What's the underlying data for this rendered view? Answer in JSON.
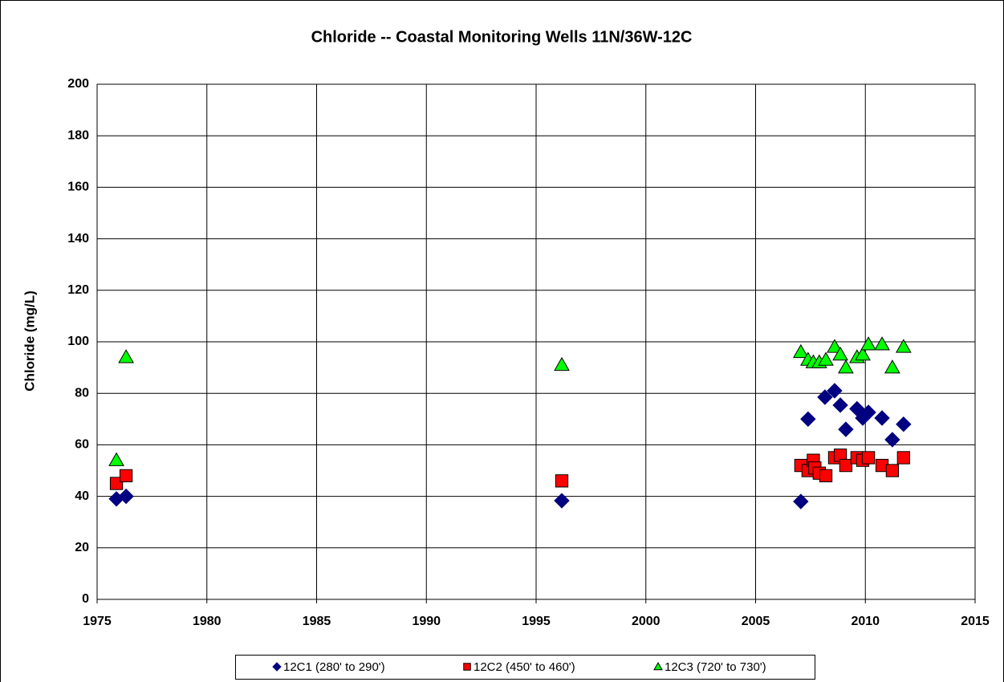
{
  "chart_data": {
    "type": "scatter",
    "title": "Chloride -- Coastal Monitoring Wells 11N/36W-12C",
    "y_label": "Chloride (mg/L)",
    "xlim": [
      1975,
      2015
    ],
    "xticks": [
      1975,
      1980,
      1985,
      1990,
      1995,
      2000,
      2005,
      2010,
      2015
    ],
    "ylim": [
      0,
      200
    ],
    "yticks": [
      0,
      20,
      40,
      60,
      80,
      100,
      120,
      140,
      160,
      180,
      200
    ],
    "grid": true,
    "legend": "bottom",
    "series": [
      {
        "name": "12C1 (280' to 290')",
        "color": "#000080",
        "marker": "diamond",
        "x": [
          1975.88,
          1976.32,
          1996.17,
          2007.06,
          2007.39,
          2008.16,
          2008.6,
          2008.86,
          2009.11,
          2009.62,
          2009.88,
          2010.14,
          2010.76,
          2011.23,
          2011.74
        ],
        "values": [
          39,
          40,
          38.3,
          38,
          70,
          78.5,
          81,
          75.4,
          66,
          74,
          70.4,
          72.6,
          70.4,
          62,
          68
        ]
      },
      {
        "name": "12C2 (450' to 460')",
        "color": "#ff0000",
        "marker": "square",
        "x": [
          1975.88,
          1976.32,
          1996.17,
          2007.06,
          2007.39,
          2007.63,
          2007.7,
          2007.9,
          2008.2,
          2008.6,
          2008.86,
          2009.11,
          2009.62,
          2009.88,
          2010.14,
          2010.76,
          2011.23,
          2011.74
        ],
        "values": [
          45,
          48,
          46,
          52,
          50,
          54,
          51,
          49,
          48,
          55,
          56,
          52,
          55,
          54,
          55,
          52,
          50,
          55
        ]
      },
      {
        "name": "12C3 (720' to 730')",
        "color": "#00ff00",
        "marker": "triangle",
        "x": [
          1975.88,
          1976.32,
          1996.17,
          2007.06,
          2007.39,
          2007.63,
          2007.9,
          2008.2,
          2008.6,
          2008.86,
          2009.11,
          2009.62,
          2009.88,
          2010.14,
          2010.76,
          2011.23,
          2011.74
        ],
        "values": [
          54,
          94,
          91,
          96,
          93,
          92,
          92,
          93,
          98,
          95,
          90,
          94,
          95,
          99,
          99,
          90,
          98
        ]
      }
    ]
  }
}
